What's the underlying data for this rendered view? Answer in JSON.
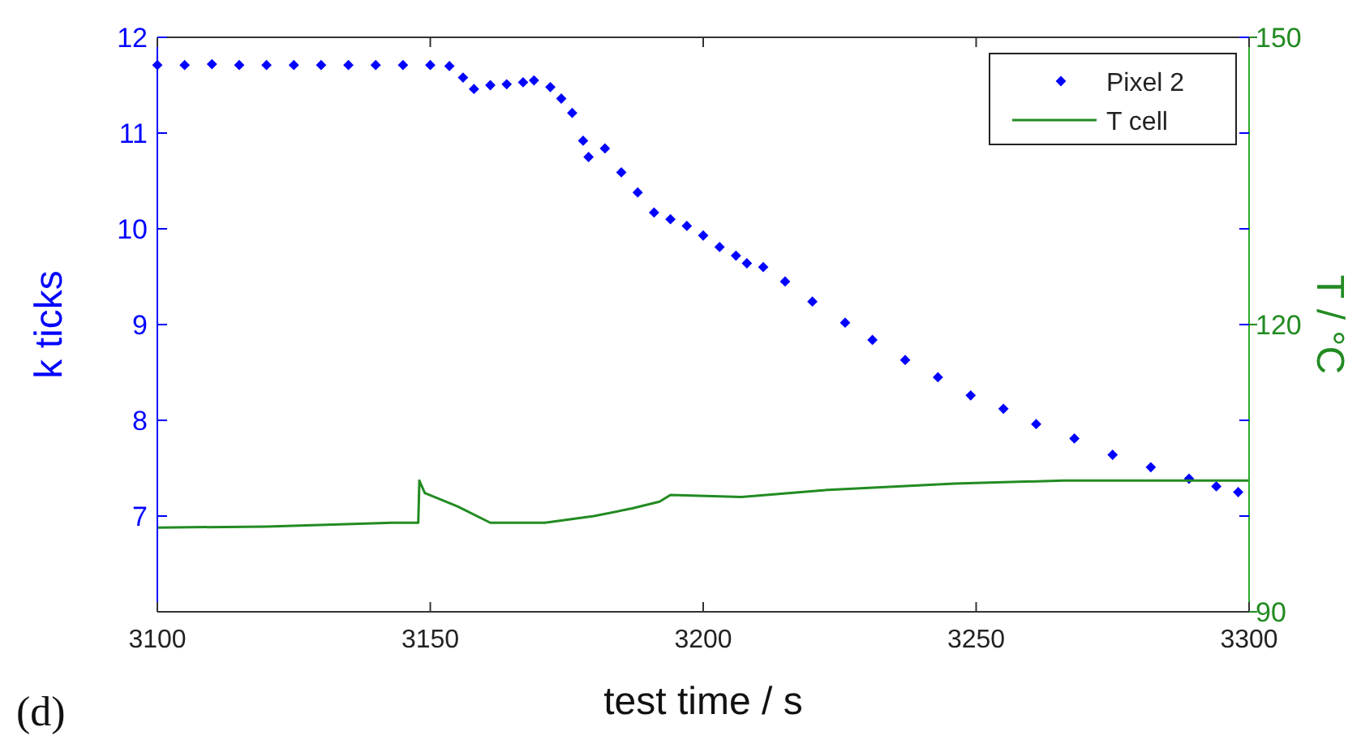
{
  "chart_data": {
    "type": "scatter",
    "xlabel": "test time / s",
    "ylabel": "k ticks",
    "y2label": "T / °C",
    "annotations": [
      "(d)"
    ],
    "xlim": [
      3100,
      3300
    ],
    "xticks": [
      3100,
      3150,
      3200,
      3250,
      3300
    ],
    "ylim": [
      6,
      12
    ],
    "yticks": [
      7,
      8,
      9,
      10,
      11,
      12
    ],
    "y2lim": [
      90,
      150
    ],
    "y2ticks": [
      90,
      120,
      150
    ],
    "legend": "top right",
    "grid": false,
    "series": [
      {
        "name": "Pixel 2",
        "marker": "diamond",
        "color": "#0000ff",
        "x": [
          3100,
          3105,
          3110,
          3115,
          3120,
          3125,
          3130,
          3135,
          3140,
          3145,
          3150,
          3153.5,
          3156,
          3158,
          3161,
          3164,
          3167,
          3169,
          3172,
          3174,
          3176,
          3178,
          3179,
          3182,
          3185,
          3188,
          3191,
          3194,
          3197,
          3200,
          3203,
          3206,
          3208,
          3211,
          3215,
          3220,
          3226,
          3231,
          3237,
          3243,
          3249,
          3255,
          3261,
          3268,
          3275,
          3282,
          3289,
          3294,
          3298
        ],
        "values": [
          11.71,
          11.71,
          11.72,
          11.71,
          11.71,
          11.71,
          11.71,
          11.71,
          11.71,
          11.71,
          11.71,
          11.7,
          11.58,
          11.46,
          11.5,
          11.51,
          11.53,
          11.55,
          11.48,
          11.36,
          11.21,
          10.92,
          10.75,
          10.84,
          10.59,
          10.38,
          10.17,
          10.1,
          10.03,
          9.93,
          9.81,
          9.72,
          9.64,
          9.6,
          9.45,
          9.24,
          9.02,
          8.84,
          8.63,
          8.45,
          8.26,
          8.12,
          7.96,
          7.81,
          7.64,
          7.51,
          7.39,
          7.31,
          7.25
        ]
      },
      {
        "name": "T cell",
        "type": "line",
        "axis": "y2",
        "line_style": "solid",
        "marker": "none",
        "color": "#228b22",
        "x": [
          3100,
          3120,
          3143,
          3147.8,
          3148,
          3149,
          3155,
          3161,
          3171,
          3180,
          3187,
          3192,
          3194,
          3207,
          3222,
          3246,
          3266,
          3300
        ],
        "values": [
          98.8,
          98.9,
          99.3,
          99.3,
          103.7,
          102.4,
          101.0,
          99.3,
          99.3,
          100.0,
          100.8,
          101.5,
          102.2,
          102.0,
          102.7,
          103.4,
          103.7,
          103.7
        ]
      }
    ]
  }
}
